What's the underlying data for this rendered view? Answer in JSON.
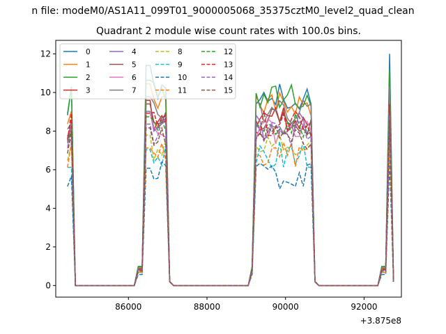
{
  "chart_data": {
    "type": "line",
    "suptitle": "n file: modeM0/AS1A11_099T01_9000005068_35375cztM0_level2_quad_clean",
    "title": "Quadrant 2 module wise count rates with 100.0s bins.",
    "xlabel": "",
    "ylabel": "",
    "offset_text": "+3.875e8",
    "xlim": [
      84150,
      92950
    ],
    "ylim": [
      -0.6,
      12.7
    ],
    "x_ticks": [
      86000,
      88000,
      90000,
      92000
    ],
    "x_tick_labels": [
      "86000",
      "88000",
      "90000",
      "92000"
    ],
    "y_ticks": [
      0,
      2,
      4,
      6,
      8,
      10,
      12
    ],
    "y_tick_labels": [
      "0",
      "2",
      "4",
      "6",
      "8",
      "10",
      "12"
    ],
    "grid": false,
    "legend_position": "top-left",
    "legend_columns": 4,
    "observation_windows": [
      {
        "start": 84450,
        "end": 84640,
        "on_start": 84550
      },
      {
        "start": 86200,
        "end": 87050,
        "on_start": 86390
      },
      {
        "start": 89150,
        "end": 90780,
        "on_start": 89250
      },
      {
        "start": 92450,
        "end": 92780,
        "on_start": 92580
      }
    ],
    "series": [
      {
        "name": "0",
        "color": "#1f77b4",
        "dash": "solid",
        "mean": 9.8,
        "peak": 12.0
      },
      {
        "name": "1",
        "color": "#ff7f0e",
        "dash": "solid",
        "mean": 9.3,
        "peak": 11.0
      },
      {
        "name": "2",
        "color": "#2ca02c",
        "dash": "solid",
        "mean": 9.9,
        "peak": 11.2
      },
      {
        "name": "3",
        "color": "#d62728",
        "dash": "solid",
        "mean": 8.6,
        "peak": 10.1
      },
      {
        "name": "4",
        "color": "#9467bd",
        "dash": "solid",
        "mean": 8.3,
        "peak": 9.5
      },
      {
        "name": "5",
        "color": "#8c564b",
        "dash": "solid",
        "mean": 8.5,
        "peak": 9.9
      },
      {
        "name": "6",
        "color": "#e377c2",
        "dash": "solid",
        "mean": 8.0,
        "peak": 9.4
      },
      {
        "name": "7",
        "color": "#7f7f7f",
        "dash": "solid",
        "mean": 9.0,
        "peak": 10.3
      },
      {
        "name": "8",
        "color": "#bcbd22",
        "dash": "dashed",
        "mean": 7.2,
        "peak": 8.2
      },
      {
        "name": "9",
        "color": "#17becf",
        "dash": "dashed",
        "mean": 6.8,
        "peak": 7.4
      },
      {
        "name": "10",
        "color": "#1f77b4",
        "dash": "dashed",
        "mean": 5.7,
        "peak": 6.4
      },
      {
        "name": "11",
        "color": "#ff7f0e",
        "dash": "dashed",
        "mean": 6.8,
        "peak": 7.5
      },
      {
        "name": "12",
        "color": "#2ca02c",
        "dash": "dashed",
        "mean": 8.2,
        "peak": 9.2
      },
      {
        "name": "13",
        "color": "#d62728",
        "dash": "dashed",
        "mean": 8.4,
        "peak": 9.4
      },
      {
        "name": "14",
        "color": "#9467bd",
        "dash": "dashed",
        "mean": 7.9,
        "peak": 8.8
      },
      {
        "name": "15",
        "color": "#8c564b",
        "dash": "dashed",
        "mean": 7.6,
        "peak": 8.6
      }
    ]
  }
}
